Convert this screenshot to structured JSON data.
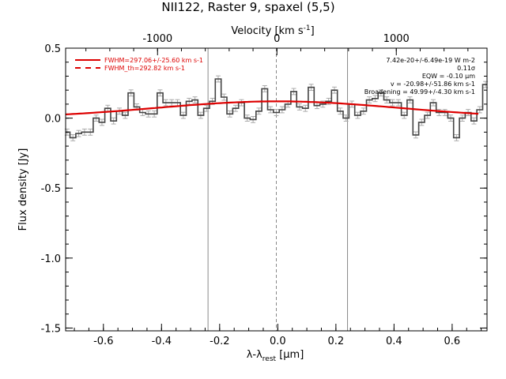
{
  "chart_data": {
    "type": "line",
    "title": "NII122, Raster 9, spaxel (5,5)",
    "xlabel": "λ-λrest [µm]",
    "ylabel": "Flux density [Jy]",
    "top_xlabel": "Velocity [km s-1]",
    "xlim": [
      -0.73,
      0.72
    ],
    "ylim": [
      -1.52,
      0.5
    ],
    "top_xlim": [
      -1770,
      1760
    ],
    "x_ticks": [
      -0.6,
      -0.4,
      -0.2,
      0.0,
      0.2,
      0.4,
      0.6
    ],
    "x_tick_labels": [
      "-0.6",
      "-0.4",
      "-0.2",
      "0.0",
      "0.2",
      "0.4",
      "0.6"
    ],
    "y_ticks": [
      -1.5,
      -1.0,
      -0.5,
      0.0,
      0.5
    ],
    "y_tick_labels": [
      "-1.5",
      "-1.0",
      "-0.5",
      "0.0",
      "0.5"
    ],
    "top_ticks": [
      -1000,
      0,
      1000
    ],
    "top_tick_labels": [
      "-1000",
      "0",
      "1000"
    ],
    "grid": false,
    "vertical_lines": [
      -0.24,
      -0.005,
      0.24
    ],
    "legend": {
      "placement": "top-left",
      "entries": [
        {
          "label": "FWHM=297.06+/-25.60 km s-1",
          "color": "#dd0000",
          "style": "solid"
        },
        {
          "label": "FWHM_th=292.82 km s-1",
          "color": "#dd0000",
          "style": "dashed"
        }
      ]
    },
    "annotations": [
      "7.42e-20+/-6.49e-19 W m-2",
      "0.11σ",
      "EQW = -0.10 µm",
      "v = -20.98+/-51.86 km s-1",
      "Broadening = 49.99+/-4.30 km s-1"
    ],
    "series": [
      {
        "type": "step",
        "color": "#444444",
        "error_color": "#aaaaaa",
        "error": 0.022,
        "x": [
          -0.725,
          -0.705,
          -0.685,
          -0.665,
          -0.645,
          -0.625,
          -0.605,
          -0.585,
          -0.565,
          -0.545,
          -0.525,
          -0.505,
          -0.485,
          -0.465,
          -0.445,
          -0.425,
          -0.405,
          -0.385,
          -0.365,
          -0.345,
          -0.325,
          -0.305,
          -0.285,
          -0.265,
          -0.245,
          -0.225,
          -0.205,
          -0.185,
          -0.165,
          -0.145,
          -0.125,
          -0.105,
          -0.085,
          -0.065,
          -0.045,
          -0.025,
          -0.005,
          0.015,
          0.035,
          0.055,
          0.075,
          0.095,
          0.115,
          0.135,
          0.155,
          0.175,
          0.195,
          0.215,
          0.235,
          0.255,
          0.275,
          0.295,
          0.315,
          0.335,
          0.355,
          0.375,
          0.395,
          0.415,
          0.435,
          0.455,
          0.475,
          0.495,
          0.515,
          0.535,
          0.555,
          0.575,
          0.595,
          0.615,
          0.635,
          0.655,
          0.675,
          0.695,
          0.715
        ],
        "y": [
          -0.1,
          -0.14,
          -0.11,
          -0.1,
          -0.1,
          0.0,
          -0.03,
          0.07,
          -0.02,
          0.05,
          0.02,
          0.18,
          0.08,
          0.04,
          0.03,
          0.03,
          0.18,
          0.11,
          0.11,
          0.11,
          0.02,
          0.12,
          0.13,
          0.02,
          0.07,
          0.12,
          0.28,
          0.15,
          0.03,
          0.07,
          0.11,
          0.0,
          -0.01,
          0.05,
          0.21,
          0.06,
          0.04,
          0.06,
          0.1,
          0.19,
          0.08,
          0.07,
          0.22,
          0.09,
          0.1,
          0.12,
          0.2,
          0.05,
          0.0,
          0.1,
          0.02,
          0.05,
          0.13,
          0.14,
          0.18,
          0.13,
          0.11,
          0.11,
          0.02,
          0.13,
          -0.12,
          -0.03,
          0.02,
          0.11,
          0.04,
          0.04,
          0.0,
          -0.14,
          0.0,
          0.04,
          -0.02,
          0.06,
          0.24
        ]
      },
      {
        "type": "gaussian-fit",
        "color": "#dd0000",
        "amplitude": 0.12,
        "center": 0.0,
        "sigma": 0.42,
        "x_range": [
          -0.73,
          0.69
        ]
      }
    ]
  }
}
